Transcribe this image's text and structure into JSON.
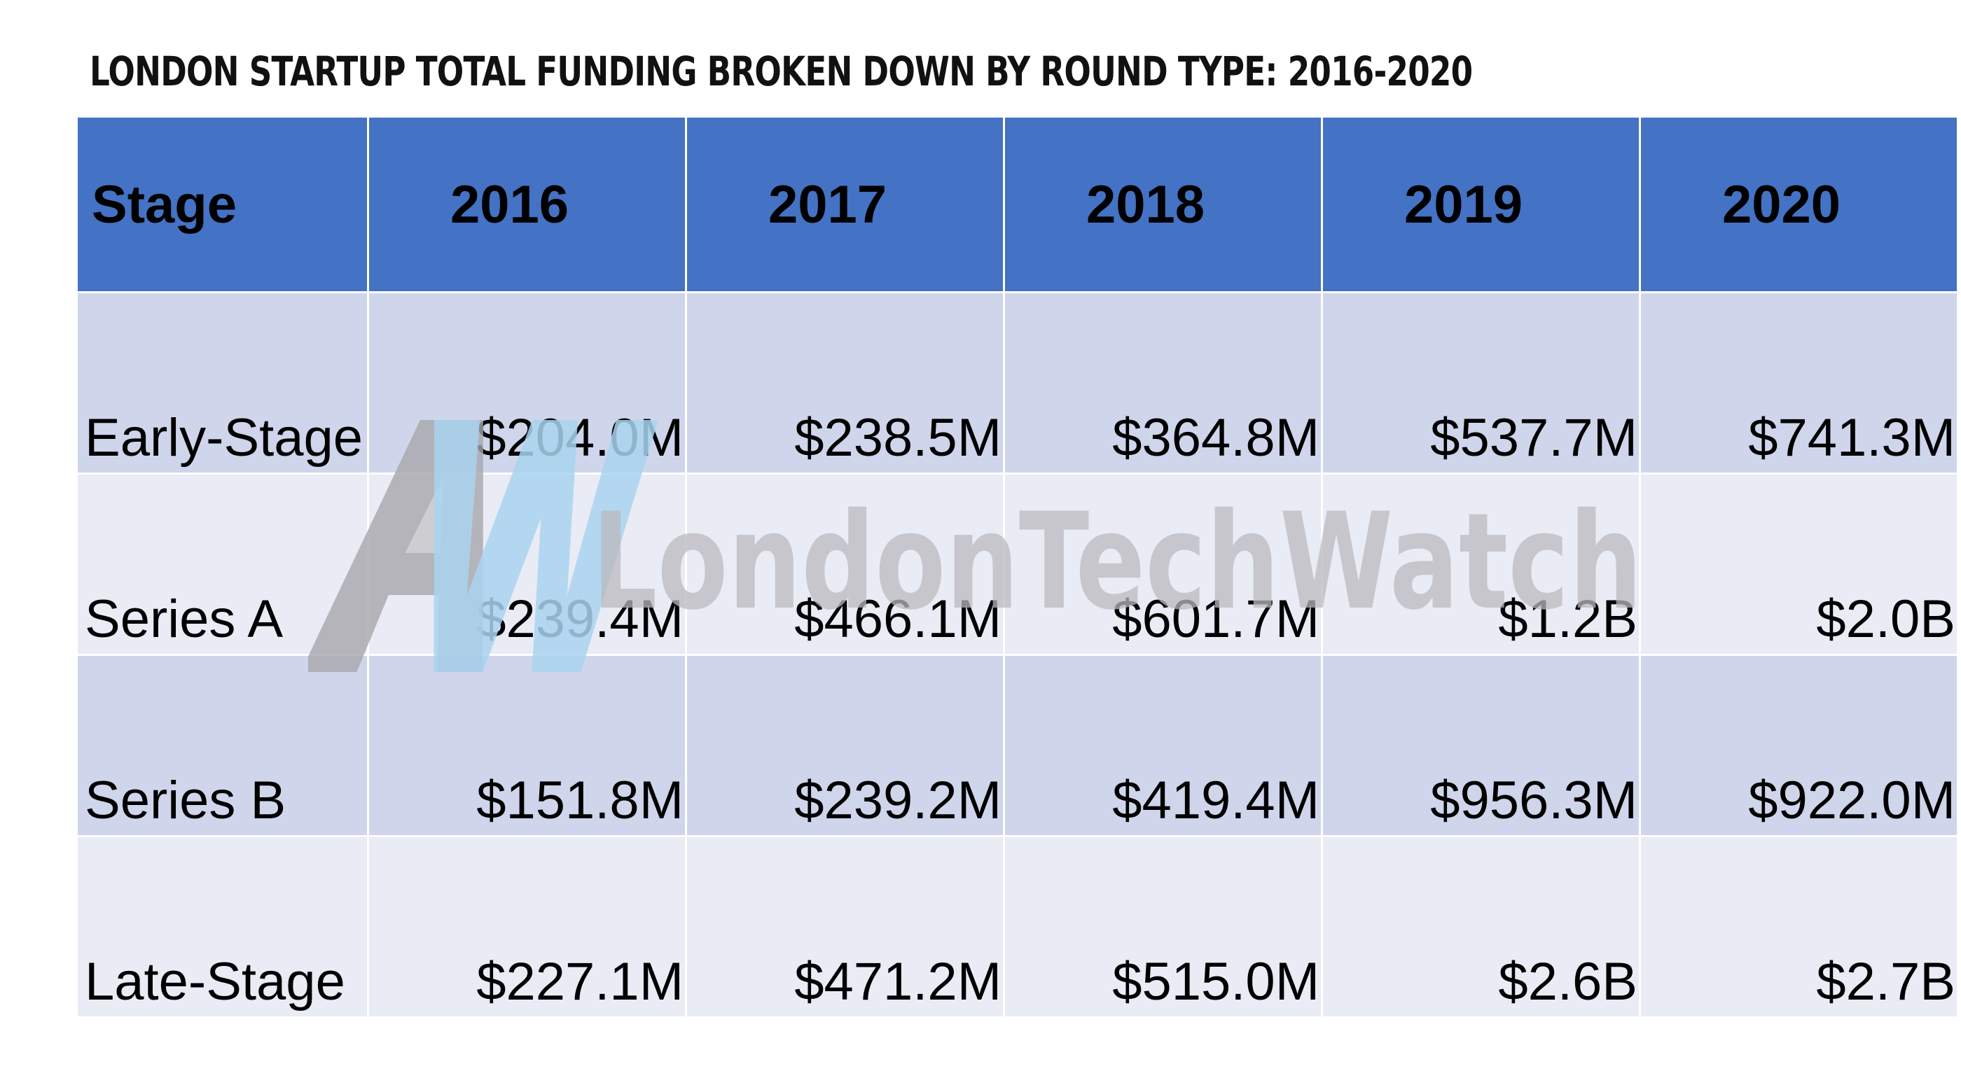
{
  "title": "LONDON STARTUP TOTAL FUNDING BROKEN DOWN BY ROUND TYPE: 2016-2020",
  "watermark": {
    "monogram": "AW",
    "text": "LondonTechWatch"
  },
  "colors": {
    "header_bg": "#4472c4",
    "row_odd": "#cfd5ea",
    "row_even": "#e9ebf5",
    "watermark_gray": "#b9b9bd",
    "watermark_blue": "#a9d3ee"
  },
  "table": {
    "stage_header": "Stage",
    "years": [
      "2016",
      "2017",
      "2018",
      "2019",
      "2020"
    ],
    "rows": [
      {
        "stage": "Early-Stage",
        "values": [
          "$204.0M",
          "$238.5M",
          "$364.8M",
          "$537.7M",
          "$741.3M"
        ]
      },
      {
        "stage": "Series A",
        "values": [
          "$239.4M",
          "$466.1M",
          "$601.7M",
          "$1.2B",
          "$2.0B"
        ]
      },
      {
        "stage": "Series B",
        "values": [
          "$151.8M",
          "$239.2M",
          "$419.4M",
          "$956.3M",
          "$922.0M"
        ]
      },
      {
        "stage": "Late-Stage",
        "values": [
          "$227.1M",
          "$471.2M",
          "$515.0M",
          "$2.6B",
          "$2.7B"
        ]
      }
    ]
  },
  "chart_data": {
    "type": "table",
    "title": "LONDON STARTUP TOTAL FUNDING BROKEN DOWN BY ROUND TYPE: 2016-2020",
    "columns": [
      "Stage",
      "2016",
      "2017",
      "2018",
      "2019",
      "2020"
    ],
    "rows": [
      [
        "Early-Stage",
        "$204.0M",
        "$238.5M",
        "$364.8M",
        "$537.7M",
        "$741.3M"
      ],
      [
        "Series A",
        "$239.4M",
        "$466.1M",
        "$601.7M",
        "$1.2B",
        "$2.0B"
      ],
      [
        "Series B",
        "$151.8M",
        "$239.2M",
        "$419.4M",
        "$956.3M",
        "$922.0M"
      ],
      [
        "Late-Stage",
        "$227.1M",
        "$471.2M",
        "$515.0M",
        "$2.6B",
        "$2.7B"
      ]
    ]
  }
}
